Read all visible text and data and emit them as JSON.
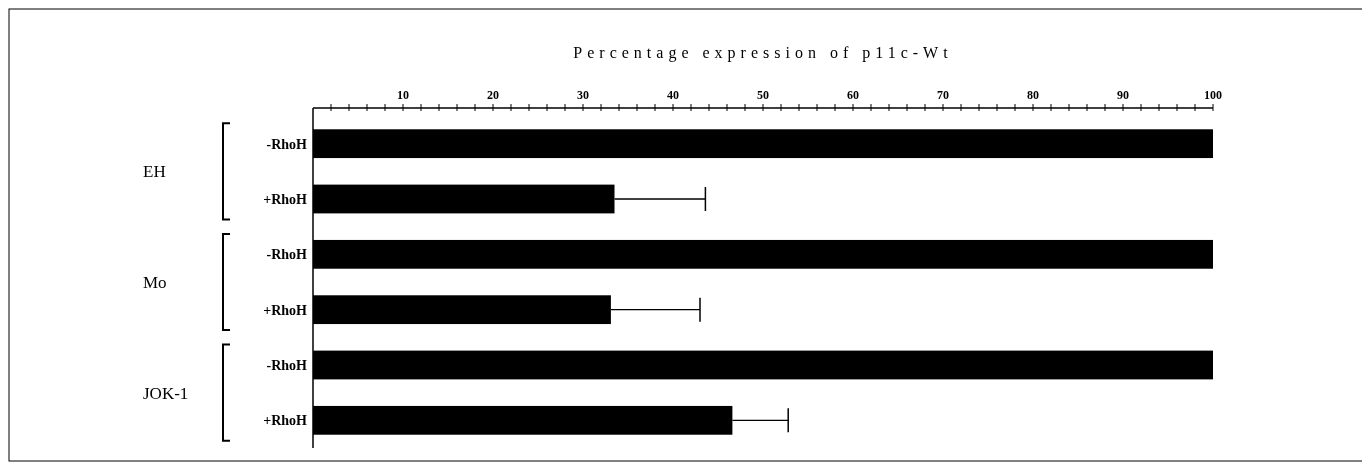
{
  "chart_data": {
    "type": "bar",
    "orientation": "horizontal",
    "xlabel": "Percentage expression of p11c-Wt",
    "categories": [
      "-RhoH",
      "+RhoH",
      "-RhoH",
      "+RhoH",
      "-RhoH",
      "+RhoH"
    ],
    "values": [
      100,
      33.5,
      100,
      33.1,
      100,
      46.6
    ],
    "errors": [
      null,
      [
        33.5,
        43.6
      ],
      null,
      [
        33.1,
        43.0
      ],
      null,
      [
        46.6,
        52.8
      ]
    ],
    "color": "#000000",
    "annotations": [
      "EH",
      "Mo",
      "JOK-1"
    ],
    "xlim": [
      0,
      100
    ],
    "xticks": [
      {
        "value": 2,
        "label": null
      },
      {
        "value": 4,
        "label": null
      },
      {
        "value": 6,
        "label": null
      },
      {
        "value": 8,
        "label": null
      },
      10,
      {
        "value": 12,
        "label": null
      },
      {
        "value": 14,
        "label": null
      },
      {
        "value": 16,
        "label": null
      },
      {
        "value": 18,
        "label": null
      },
      20,
      {
        "value": 22,
        "label": null
      },
      {
        "value": 24,
        "label": null
      },
      {
        "value": 26,
        "label": null
      },
      {
        "value": 28,
        "label": null
      },
      30,
      {
        "value": 32,
        "label": null
      },
      {
        "value": 34,
        "label": null
      },
      {
        "value": 36,
        "label": null
      },
      {
        "value": 38,
        "label": null
      },
      40,
      {
        "value": 42,
        "label": null
      },
      {
        "value": 44,
        "label": null
      },
      {
        "value": 46,
        "label": null
      },
      {
        "value": 48,
        "label": null
      },
      50,
      {
        "value": 52,
        "label": null
      },
      {
        "value": 54,
        "label": null
      },
      {
        "value": 56,
        "label": null
      },
      {
        "value": 58,
        "label": null
      },
      60,
      {
        "value": 62,
        "label": null
      },
      {
        "value": 64,
        "label": null
      },
      {
        "value": 66,
        "label": null
      },
      {
        "value": 68,
        "label": null
      },
      70,
      {
        "value": 72,
        "label": null
      },
      {
        "value": 74,
        "label": null
      },
      {
        "value": 76,
        "label": null
      },
      {
        "value": 78,
        "label": null
      },
      80,
      {
        "value": 82,
        "label": null
      },
      {
        "value": 84,
        "label": null
      },
      {
        "value": 86,
        "label": null
      },
      {
        "value": 88,
        "label": null
      },
      90,
      {
        "value": 92,
        "label": null
      },
      {
        "value": 94,
        "label": null
      },
      {
        "value": 96,
        "label": null
      },
      {
        "value": 98,
        "label": null
      },
      100
    ]
  }
}
